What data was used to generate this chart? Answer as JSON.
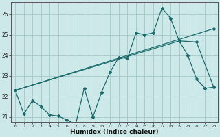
{
  "title": "",
  "xlabel": "Humidex (Indice chaleur)",
  "background_color": "#cce8e8",
  "grid_color": "#aacccc",
  "line_color": "#1a6b6b",
  "xlim": [
    -0.5,
    23.5
  ],
  "ylim": [
    20.75,
    26.6
  ],
  "yticks": [
    21,
    22,
    23,
    24,
    25,
    26
  ],
  "xticks": [
    0,
    1,
    2,
    3,
    4,
    5,
    6,
    7,
    8,
    9,
    10,
    11,
    12,
    13,
    14,
    15,
    16,
    17,
    18,
    19,
    20,
    21,
    22,
    23
  ],
  "line1_x": [
    0,
    1,
    2,
    3,
    4,
    5,
    6,
    7,
    8,
    9,
    10,
    11,
    12,
    13,
    14,
    15,
    16,
    17,
    18,
    19,
    20,
    21,
    22,
    23
  ],
  "line1_y": [
    22.3,
    21.15,
    21.8,
    21.5,
    21.1,
    21.05,
    20.85,
    20.65,
    22.4,
    21.0,
    22.2,
    23.2,
    23.9,
    23.85,
    25.1,
    25.0,
    25.1,
    26.3,
    25.8,
    24.7,
    24.0,
    22.85,
    22.4,
    22.45
  ],
  "line2_x": [
    0,
    23
  ],
  "line2_y": [
    22.3,
    25.3
  ],
  "line3_x": [
    0,
    19,
    21,
    23
  ],
  "line3_y": [
    22.3,
    24.7,
    24.65,
    22.45
  ]
}
